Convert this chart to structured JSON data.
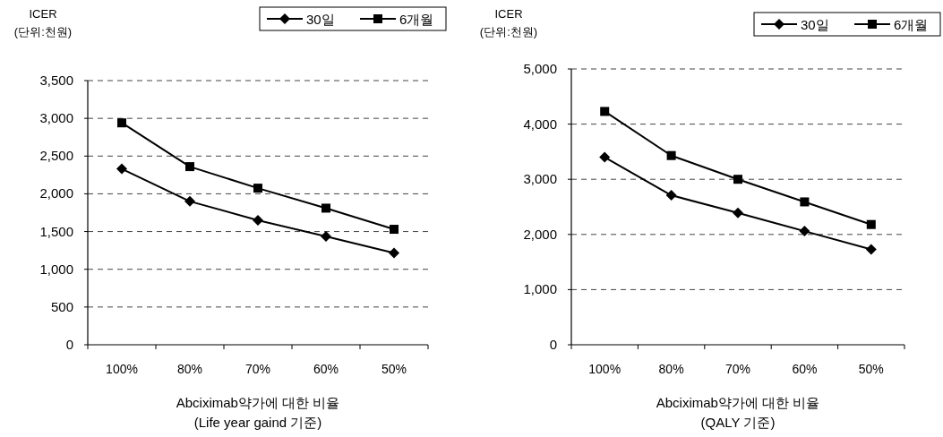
{
  "chart_data": [
    {
      "type": "line",
      "ylabel": "ICER\n(단위:천원)",
      "xlabel": "Abciximab약가에 대한 비율\n(Life year gaind 기준)",
      "categories": [
        "100%",
        "80%",
        "70%",
        "60%",
        "50%"
      ],
      "series": [
        {
          "name": "30일",
          "color": "#000000",
          "marker": "diamond",
          "values": [
            2330,
            1900,
            1650,
            1435,
            1215
          ]
        },
        {
          "name": "6개월",
          "color": "#000000",
          "marker": "square",
          "values": [
            2940,
            2360,
            2075,
            1810,
            1530
          ]
        }
      ],
      "ylim": [
        0,
        3500
      ],
      "yticks": [
        {
          "value": 0,
          "label": "0"
        },
        {
          "value": 500,
          "label": "500"
        },
        {
          "value": 1000,
          "label": "1,000"
        },
        {
          "value": 1500,
          "label": "1,500"
        },
        {
          "value": 2000,
          "label": "2,000"
        },
        {
          "value": 2500,
          "label": "2,500"
        },
        {
          "value": 3000,
          "label": "3,000"
        },
        {
          "value": 3500,
          "label": "3,500"
        }
      ],
      "grid": "y",
      "legend": "top right"
    },
    {
      "type": "line",
      "ylabel": "ICER\n(단위:천원)",
      "xlabel": "Abciximab약가에 대한 비율\n(QALY 기준)",
      "categories": [
        "100%",
        "80%",
        "70%",
        "60%",
        "50%"
      ],
      "series": [
        {
          "name": "30일",
          "color": "#000000",
          "marker": "diamond",
          "values": [
            3400,
            2710,
            2390,
            2060,
            1730
          ]
        },
        {
          "name": "6개월",
          "color": "#000000",
          "marker": "square",
          "values": [
            4230,
            3430,
            3000,
            2590,
            2180
          ]
        }
      ],
      "ylim": [
        0,
        5000
      ],
      "yticks": [
        {
          "value": 0,
          "label": "0"
        },
        {
          "value": 1000,
          "label": "1,000"
        },
        {
          "value": 2000,
          "label": "2,000"
        },
        {
          "value": 3000,
          "label": "3,000"
        },
        {
          "value": 4000,
          "label": "4,000"
        },
        {
          "value": 5000,
          "label": "5,000"
        }
      ],
      "grid": "y",
      "legend": "top right"
    }
  ]
}
